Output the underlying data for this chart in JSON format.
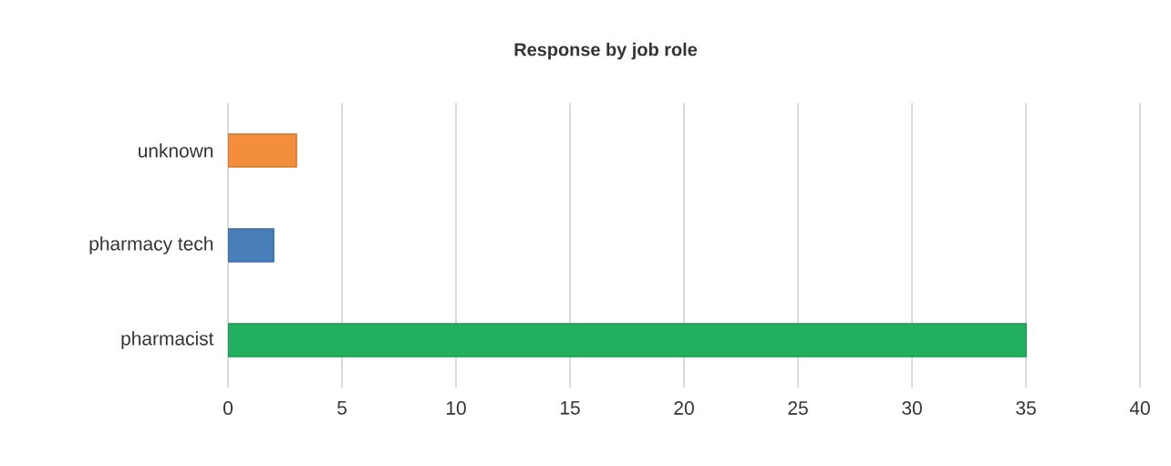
{
  "chart_data": {
    "type": "bar",
    "orientation": "horizontal",
    "title": "Response by job role",
    "categories": [
      "unknown",
      "pharmacy tech",
      "pharmacist"
    ],
    "values": [
      3,
      2,
      35
    ],
    "colors": [
      "#f28e3c",
      "#4a7ebb",
      "#22b060"
    ],
    "xlim": [
      0,
      40
    ],
    "xticks": [
      0,
      5,
      10,
      15,
      20,
      25,
      30,
      35,
      40
    ],
    "grid": "x"
  }
}
